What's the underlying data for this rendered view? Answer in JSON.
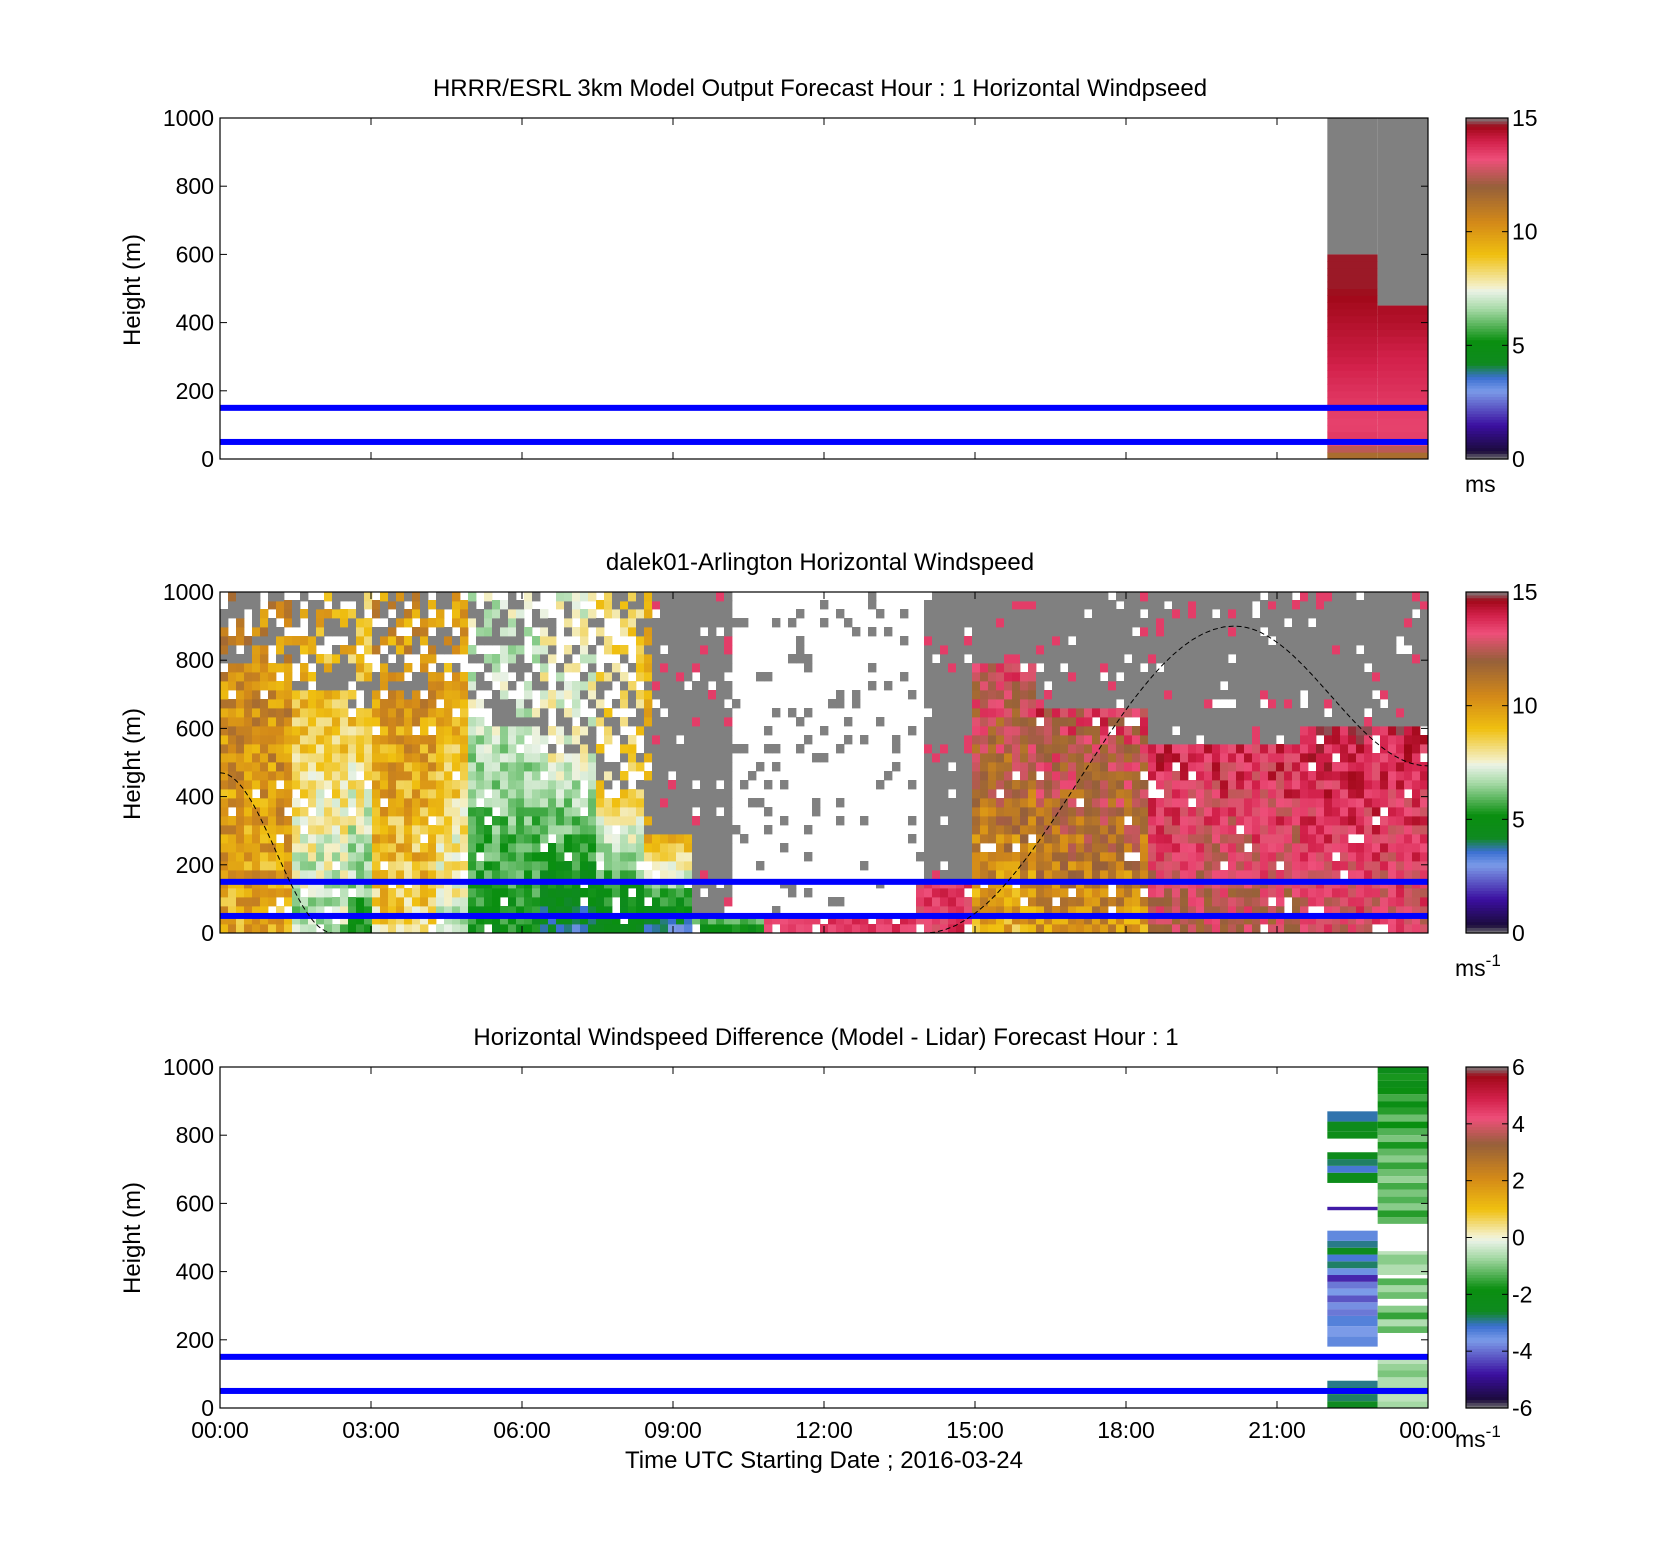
{
  "figure": {
    "background": "#ffffff",
    "band_color": "#0000ff"
  },
  "colormaps": {
    "speed": {
      "range": [
        0,
        15
      ],
      "stops": [
        {
          "v": 0.0,
          "c": "#7f7f7f"
        },
        {
          "v": 0.35,
          "c": "#1b0b3b"
        },
        {
          "v": 1.5,
          "c": "#3b0fa0"
        },
        {
          "v": 3.0,
          "c": "#7b9be8"
        },
        {
          "v": 3.6,
          "c": "#3a6fd0"
        },
        {
          "v": 4.2,
          "c": "#0f8a20"
        },
        {
          "v": 5.2,
          "c": "#0a8f10"
        },
        {
          "v": 6.6,
          "c": "#a5d9a5"
        },
        {
          "v": 7.4,
          "c": "#e9f2e6"
        },
        {
          "v": 7.6,
          "c": "#f4f0c8"
        },
        {
          "v": 9.0,
          "c": "#f0c010"
        },
        {
          "v": 10.4,
          "c": "#d48a18"
        },
        {
          "v": 12.0,
          "c": "#96603a"
        },
        {
          "v": 13.2,
          "c": "#ee4f7a"
        },
        {
          "v": 14.0,
          "c": "#d2204a"
        },
        {
          "v": 14.65,
          "c": "#a00818"
        },
        {
          "v": 15.0,
          "c": "#7f7f7f"
        }
      ]
    },
    "diff": {
      "range": [
        -6,
        6
      ],
      "stops": [
        {
          "v": -6.0,
          "c": "#7f7f7f"
        },
        {
          "v": -5.7,
          "c": "#1b0b3b"
        },
        {
          "v": -4.8,
          "c": "#3b0fa0"
        },
        {
          "v": -3.6,
          "c": "#7b9be8"
        },
        {
          "v": -3.1,
          "c": "#3a6fd0"
        },
        {
          "v": -2.6,
          "c": "#0f8a20"
        },
        {
          "v": -1.8,
          "c": "#0a8f10"
        },
        {
          "v": -0.7,
          "c": "#a5d9a5"
        },
        {
          "v": -0.1,
          "c": "#e9f2e6"
        },
        {
          "v": 0.1,
          "c": "#f4f0c8"
        },
        {
          "v": 1.0,
          "c": "#f0c010"
        },
        {
          "v": 2.1,
          "c": "#d48a18"
        },
        {
          "v": 3.3,
          "c": "#96603a"
        },
        {
          "v": 4.2,
          "c": "#ee4f7a"
        },
        {
          "v": 4.9,
          "c": "#d2204a"
        },
        {
          "v": 5.7,
          "c": "#a00818"
        },
        {
          "v": 6.0,
          "c": "#7f7f7f"
        }
      ]
    }
  },
  "chart_data": [
    {
      "type": "heatmap",
      "title": "HRRR/ESRL 3km Model Output   Forecast Hour : 1 Horizontal Windpseed",
      "ylabel": "Height (m)",
      "xlabel": "",
      "xlim": [
        "00:00",
        "24:00"
      ],
      "ylim": [
        0,
        1000
      ],
      "x_ticks": [
        "00:00",
        "03:00",
        "06:00",
        "09:00",
        "12:00",
        "15:00",
        "18:00",
        "21:00",
        "00:00"
      ],
      "show_x_tick_labels": false,
      "y_ticks": [
        0,
        200,
        400,
        600,
        800,
        1000
      ],
      "colorbar": {
        "colormap": "speed",
        "ticks": [
          0,
          5,
          10,
          15
        ],
        "unit": "ms",
        "unit_sup": ""
      },
      "bands_m": [
        50,
        150
      ],
      "columns": [
        {
          "t0": "22:00",
          "t1": "23:00",
          "grey_above_m": 600,
          "profile": [
            [
              0,
              11
            ],
            [
              20,
              12
            ],
            [
              40,
              13
            ],
            [
              60,
              13.6
            ],
            [
              100,
              13.4
            ],
            [
              200,
              13.7
            ],
            [
              300,
              14.1
            ],
            [
              400,
              14.4
            ],
            [
              500,
              14.7
            ],
            [
              600,
              14.7
            ]
          ]
        },
        {
          "t0": "23:00",
          "t1": "24:00",
          "grey_above_m": 450,
          "profile": [
            [
              0,
              11
            ],
            [
              20,
              12
            ],
            [
              40,
              13
            ],
            [
              60,
              13.5
            ],
            [
              100,
              13.4
            ],
            [
              200,
              13.7
            ],
            [
              300,
              14.0
            ],
            [
              400,
              14.4
            ],
            [
              450,
              14.5
            ]
          ]
        }
      ]
    },
    {
      "type": "heatmap",
      "title": "dalek01-Arlington  Horizontal Windspeed",
      "ylabel": "Height (m)",
      "xlabel": "",
      "xlim": [
        "00:00",
        "24:00"
      ],
      "ylim": [
        0,
        1000
      ],
      "x_ticks": [
        "00:00",
        "03:00",
        "06:00",
        "09:00",
        "12:00",
        "15:00",
        "18:00",
        "21:00",
        "00:00"
      ],
      "show_x_tick_labels": false,
      "y_ticks": [
        0,
        200,
        400,
        600,
        800,
        1000
      ],
      "colorbar": {
        "colormap": "speed",
        "ticks": [
          0,
          5,
          10,
          15
        ],
        "unit": "ms",
        "unit_sup": "-1"
      },
      "bands_m": [
        50,
        150
      ],
      "dashed_curve": [
        [
          0,
          470
        ],
        [
          2.25,
          0
        ],
        [
          14.0,
          0
        ],
        [
          20.15,
          900
        ],
        [
          24,
          490
        ]
      ],
      "lidar_segments": [
        {
          "t0": 0.0,
          "t1": 1.4,
          "surface": 9.5,
          "aloft": 10.5,
          "top_m": 780,
          "noise": 2.5
        },
        {
          "t0": 1.4,
          "t1": 2.6,
          "surface": 6.5,
          "aloft": 9.2,
          "top_m": 700,
          "noise": 2.0
        },
        {
          "t0": 2.6,
          "t1": 3.0,
          "surface": 5.5,
          "aloft": 9.0,
          "top_m": 650,
          "noise": 2.0
        },
        {
          "t0": 3.0,
          "t1": 4.3,
          "surface": 8.5,
          "aloft": 10.2,
          "top_m": 680,
          "noise": 2.5
        },
        {
          "t0": 4.3,
          "t1": 5.0,
          "surface": 7.0,
          "aloft": 9.8,
          "top_m": 760,
          "noise": 2.0
        },
        {
          "t0": 5.0,
          "t1": 6.4,
          "surface": 5.0,
          "aloft": 7.0,
          "top_m": 620,
          "noise": 1.5
        },
        {
          "t0": 6.4,
          "t1": 7.4,
          "surface": 3.8,
          "aloft": 7.5,
          "top_m": 520,
          "noise": 1.5
        },
        {
          "t0": 7.4,
          "t1": 8.5,
          "surface": 4.0,
          "aloft": 8.5,
          "top_m": 400,
          "noise": 1.5
        },
        {
          "t0": 8.5,
          "t1": 9.4,
          "surface": 3.2,
          "aloft": 9.5,
          "top_m": 280,
          "noise": 1.2
        },
        {
          "t0": 9.4,
          "t1": 10.8,
          "surface": 4.6,
          "aloft": 6.5,
          "top_m": 60,
          "noise": 0.8
        },
        {
          "t0": 10.8,
          "t1": 13.8,
          "surface": 13.6,
          "aloft": 13.6,
          "top_m": 60,
          "noise": 1.0
        },
        {
          "t0": 13.8,
          "t1": 15.0,
          "surface": 13.5,
          "aloft": 13.5,
          "top_m": 160,
          "noise": 1.5
        },
        {
          "t0": 15.0,
          "t1": 16.2,
          "surface": 9.5,
          "aloft": 13.2,
          "top_m": 780,
          "noise": 2.5
        },
        {
          "t0": 16.2,
          "t1": 18.5,
          "surface": 10.0,
          "aloft": 13.2,
          "top_m": 650,
          "noise": 2.5
        },
        {
          "t0": 18.5,
          "t1": 21.5,
          "surface": 12.5,
          "aloft": 13.8,
          "top_m": 550,
          "noise": 2.0
        },
        {
          "t0": 21.5,
          "t1": 24.0,
          "surface": 13.0,
          "aloft": 14.0,
          "top_m": 600,
          "noise": 1.8
        }
      ]
    },
    {
      "type": "heatmap",
      "title": "Horizontal Windspeed Difference (Model - Lidar) Forecast Hour : 1",
      "ylabel": "Height (m)",
      "xlabel": "Time UTC  Starting Date ; 2016-03-24",
      "xlim": [
        "00:00",
        "24:00"
      ],
      "ylim": [
        0,
        1000
      ],
      "x_ticks": [
        "00:00",
        "03:00",
        "06:00",
        "09:00",
        "12:00",
        "15:00",
        "18:00",
        "21:00",
        "00:00"
      ],
      "show_x_tick_labels": true,
      "y_ticks": [
        0,
        200,
        400,
        600,
        800,
        1000
      ],
      "colorbar": {
        "colormap": "diff",
        "ticks": [
          -6,
          -4,
          -2,
          0,
          2,
          4,
          6
        ],
        "unit": "ms",
        "unit_sup": "-1"
      },
      "bands_m": [
        50,
        150
      ],
      "columns": [
        {
          "t0": "22:00",
          "t1": "23:00",
          "bins": [
            [
              0,
              20,
              -2.6
            ],
            [
              20,
              40,
              -2.8
            ],
            [
              40,
              60,
              -2.2
            ],
            [
              60,
              80,
              -2.9
            ],
            [
              180,
              210,
              -3.4
            ],
            [
              210,
              240,
              -3.6
            ],
            [
              240,
              270,
              -3.3
            ],
            [
              270,
              290,
              -3.9
            ],
            [
              290,
              310,
              -3.7
            ],
            [
              310,
              330,
              -4.2
            ],
            [
              330,
              350,
              -3.6
            ],
            [
              350,
              370,
              -3.9
            ],
            [
              370,
              390,
              -4.6
            ],
            [
              390,
              410,
              -3.5
            ],
            [
              410,
              430,
              -2.8
            ],
            [
              430,
              450,
              -3.2
            ],
            [
              450,
              470,
              -2.5
            ],
            [
              470,
              490,
              -2.9
            ],
            [
              490,
              520,
              -3.4
            ],
            [
              580,
              590,
              -4.7
            ],
            [
              660,
              690,
              -2.3
            ],
            [
              690,
              710,
              -3.2
            ],
            [
              710,
              730,
              -2.8
            ],
            [
              730,
              750,
              -2.4
            ],
            [
              790,
              810,
              -2.2
            ],
            [
              810,
              840,
              -2.4
            ],
            [
              840,
              870,
              -3.0
            ]
          ]
        },
        {
          "t0": "23:00",
          "t1": "24:00",
          "bins": [
            [
              0,
              20,
              -0.7
            ],
            [
              20,
              40,
              -0.5
            ],
            [
              40,
              60,
              -0.9
            ],
            [
              60,
              90,
              -0.6
            ],
            [
              90,
              110,
              -1.0
            ],
            [
              110,
              130,
              -0.8
            ],
            [
              130,
              150,
              -0.5
            ],
            [
              220,
              240,
              -1.2
            ],
            [
              240,
              260,
              -0.6
            ],
            [
              260,
              280,
              -1.5
            ],
            [
              280,
              300,
              -0.9
            ],
            [
              320,
              340,
              -1.1
            ],
            [
              340,
              360,
              -0.7
            ],
            [
              360,
              380,
              -1.3
            ],
            [
              390,
              420,
              -0.6
            ],
            [
              420,
              450,
              -0.9
            ],
            [
              450,
              460,
              -0.5
            ],
            [
              540,
              560,
              -1.2
            ],
            [
              560,
              580,
              -1.6
            ],
            [
              580,
              600,
              -0.9
            ],
            [
              600,
              620,
              -1.3
            ],
            [
              620,
              640,
              -1.0
            ],
            [
              640,
              660,
              -1.4
            ],
            [
              660,
              680,
              -0.8
            ],
            [
              680,
              700,
              -1.1
            ],
            [
              700,
              720,
              -1.5
            ],
            [
              720,
              740,
              -0.9
            ],
            [
              740,
              760,
              -1.2
            ],
            [
              760,
              780,
              -1.7
            ],
            [
              780,
              800,
              -1.0
            ],
            [
              800,
              820,
              -1.3
            ],
            [
              820,
              840,
              -1.8
            ],
            [
              840,
              860,
              -1.1
            ],
            [
              860,
              880,
              -1.6
            ],
            [
              880,
              900,
              -2.0
            ],
            [
              900,
              920,
              -1.4
            ],
            [
              920,
              940,
              -1.9
            ],
            [
              940,
              960,
              -2.2
            ],
            [
              960,
              980,
              -1.7
            ],
            [
              980,
              1000,
              -2.3
            ]
          ]
        }
      ]
    }
  ]
}
